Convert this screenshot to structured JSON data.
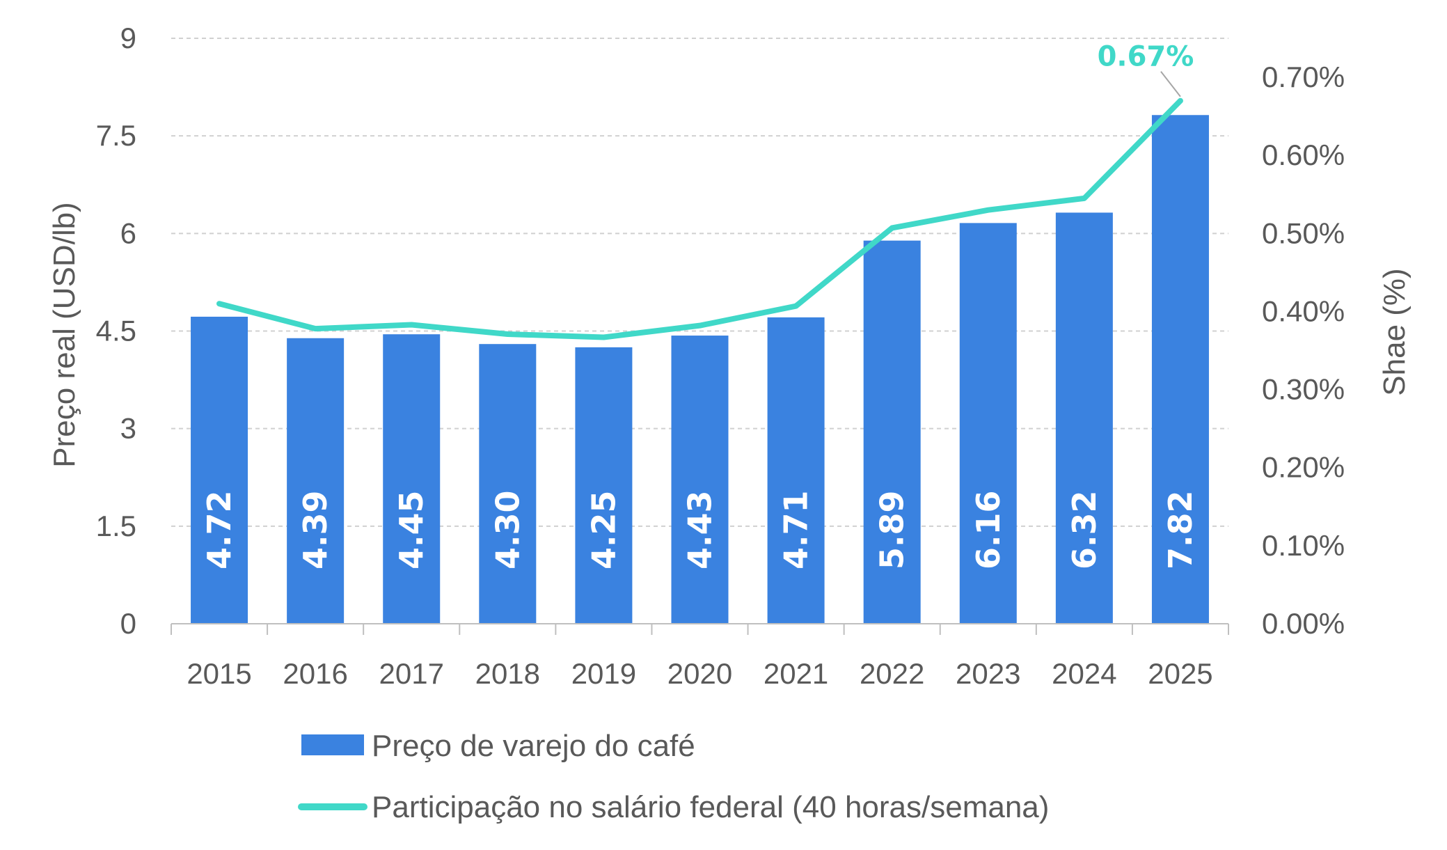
{
  "chart_data": {
    "type": "bar",
    "categories": [
      "2015",
      "2016",
      "2017",
      "2018",
      "2019",
      "2020",
      "2021",
      "2022",
      "2023",
      "2024",
      "2025"
    ],
    "series": [
      {
        "name": "Preço de varejo do café",
        "type": "bar",
        "axis": "left",
        "color": "#3A82E0",
        "values": [
          4.72,
          4.39,
          4.45,
          4.3,
          4.25,
          4.43,
          4.71,
          5.89,
          6.16,
          6.32,
          7.82
        ],
        "data_labels": [
          "4.72",
          "4.39",
          "4.45",
          "4.30",
          "4.25",
          "4.43",
          "4.71",
          "5.89",
          "6.16",
          "6.32",
          "7.82"
        ]
      },
      {
        "name": "Participação no salário federal (40 horas/semana)",
        "type": "line",
        "axis": "right",
        "color": "#40D8C8",
        "values": [
          0.41,
          0.378,
          0.383,
          0.371,
          0.367,
          0.382,
          0.407,
          0.507,
          0.53,
          0.545,
          0.67
        ]
      }
    ],
    "ylabel": "Preço real (USD/lb)",
    "ylim": [
      0,
      9
    ],
    "yticks": [
      0,
      1.5,
      3,
      4.5,
      6,
      7.5,
      9
    ],
    "ytick_labels": [
      "0",
      "1.5",
      "3",
      "4.5",
      "6",
      "7.5",
      "9"
    ],
    "y2label": "Shae (%)",
    "y2lim": [
      0,
      0.75
    ],
    "y2ticks": [
      0,
      0.1,
      0.2,
      0.3,
      0.4,
      0.5,
      0.6,
      0.7
    ],
    "y2tick_labels": [
      "0.00%",
      "0.10%",
      "0.20%",
      "0.30%",
      "0.40%",
      "0.50%",
      "0.60%",
      "0.70%"
    ],
    "annotation": {
      "text": "0.67%",
      "category": "2025",
      "series": 1,
      "color": "#40D8C8"
    },
    "grid": true,
    "legend_position": "bottom"
  }
}
